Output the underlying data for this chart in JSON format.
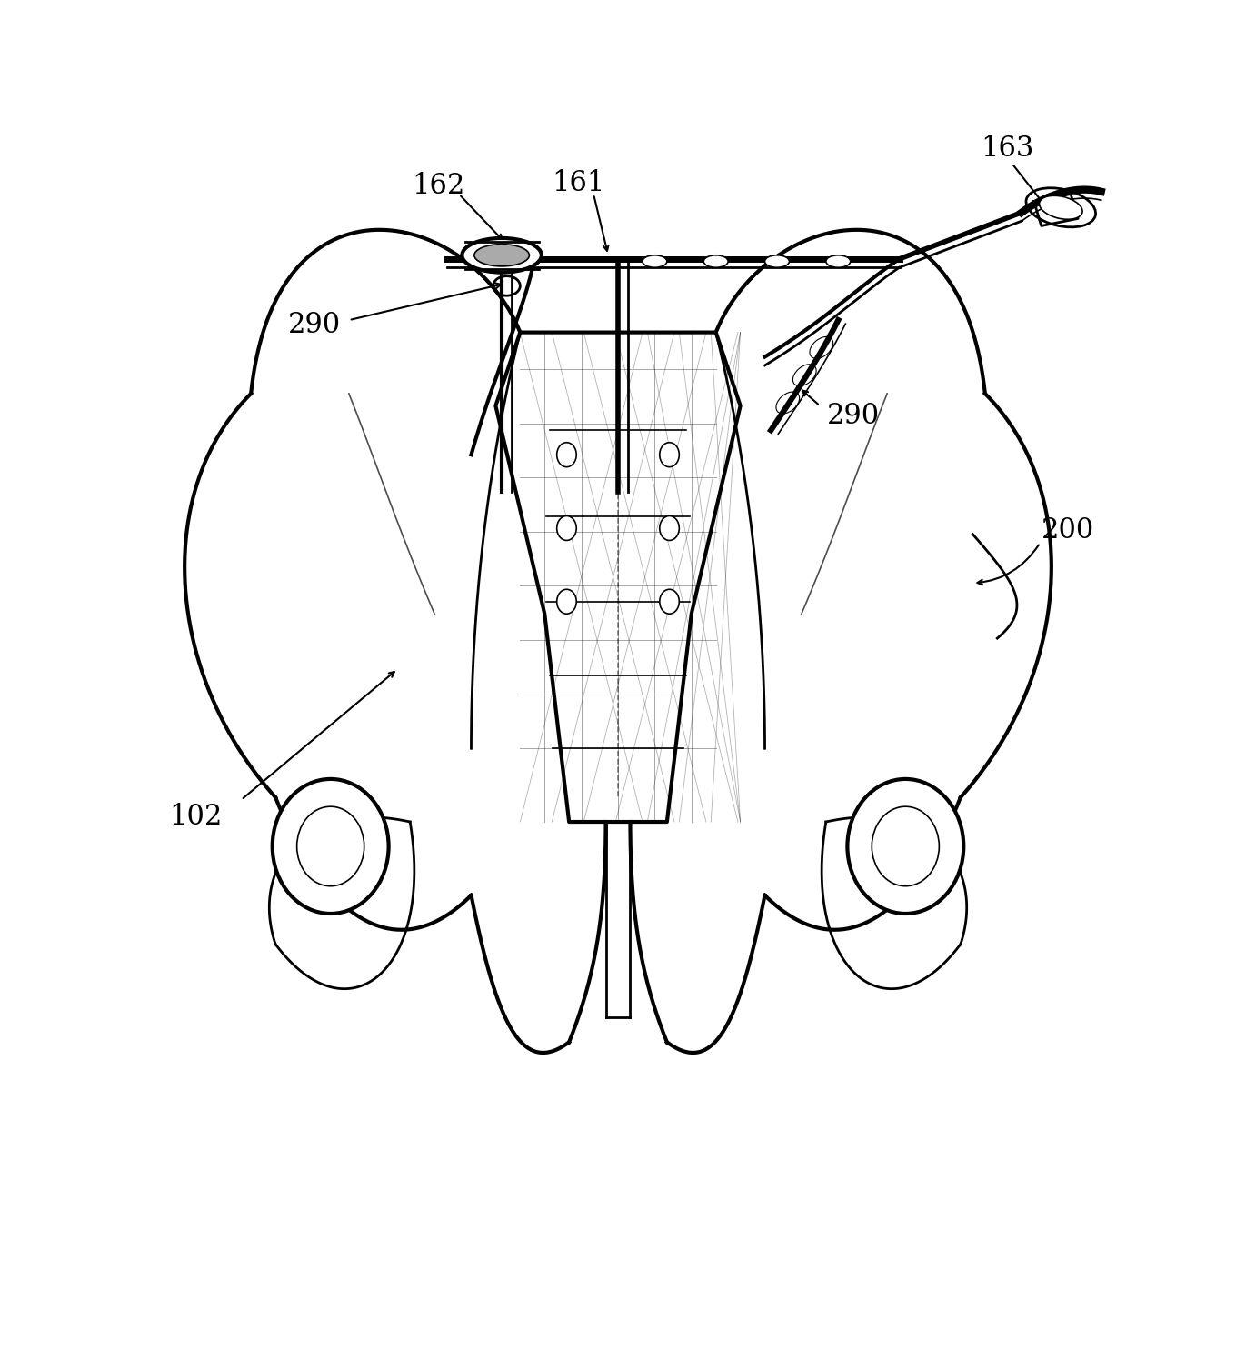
{
  "figure_width": 13.6,
  "figure_height": 14.85,
  "dpi": 100,
  "background_color": "#ffffff",
  "line_color": "#000000",
  "label_color": "#000000",
  "label_fontsize": 22
}
